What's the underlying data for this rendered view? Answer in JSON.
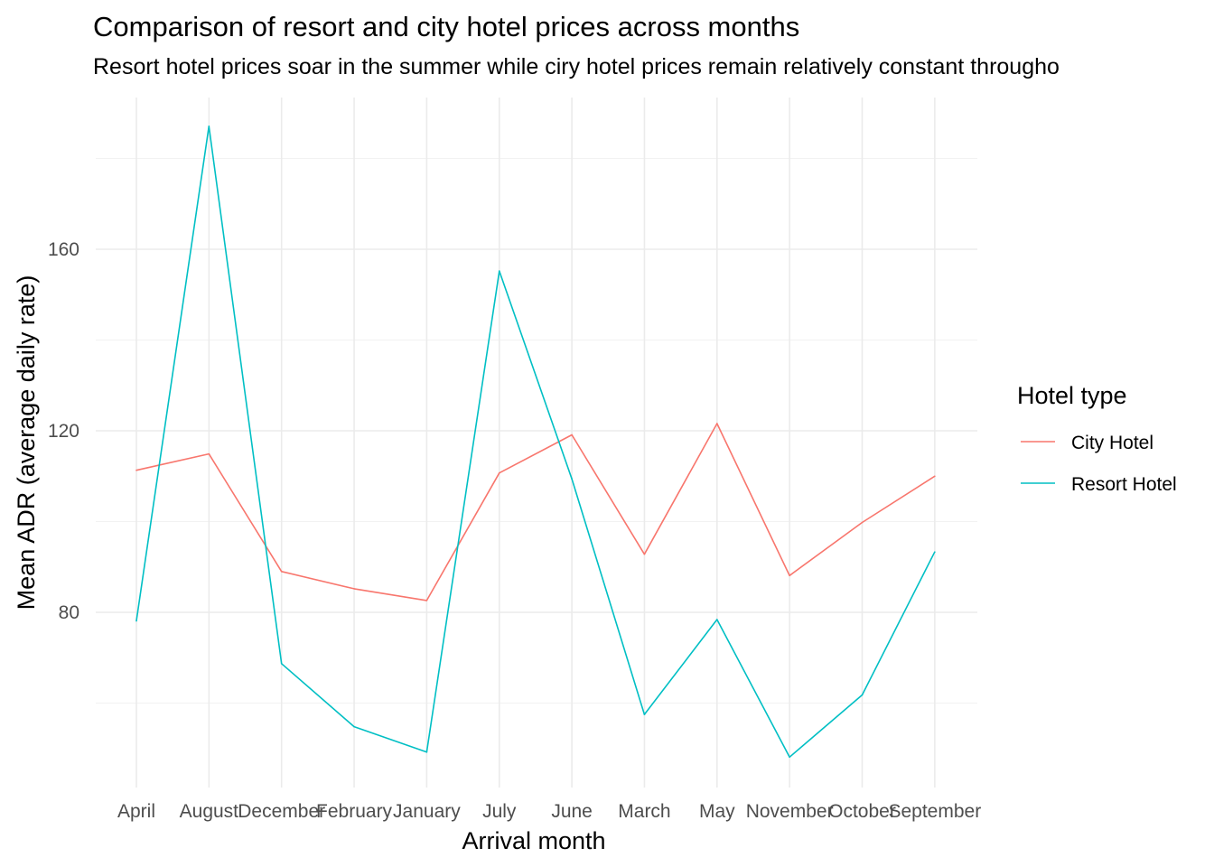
{
  "chart_data": {
    "type": "line",
    "title": "Comparison of resort and city hotel prices across months",
    "subtitle": "Resort hotel prices soar in the summer while ciry hotel prices remain relatively constant througho",
    "xlabel": "Arrival month",
    "ylabel": "Mean ADR (average daily rate)",
    "categories": [
      "April",
      "August",
      "December",
      "February",
      "January",
      "July",
      "June",
      "March",
      "May",
      "November",
      "October",
      "September"
    ],
    "yticks": [
      80,
      120,
      160
    ],
    "ylim": [
      41,
      190
    ],
    "grid": true,
    "legend": {
      "title": "Hotel type",
      "position": "right"
    },
    "series": [
      {
        "name": "City Hotel",
        "color": "#F8766D",
        "values": [
          111.3,
          114.9,
          89.0,
          85.2,
          82.6,
          110.7,
          119.1,
          92.8,
          121.6,
          88.1,
          99.8,
          110.0
        ]
      },
      {
        "name": "Resort Hotel",
        "color": "#00BFC4",
        "values": [
          78.1,
          187.1,
          68.7,
          54.8,
          49.2,
          155.2,
          109.4,
          57.5,
          78.4,
          48.1,
          61.8,
          93.3
        ]
      }
    ]
  }
}
